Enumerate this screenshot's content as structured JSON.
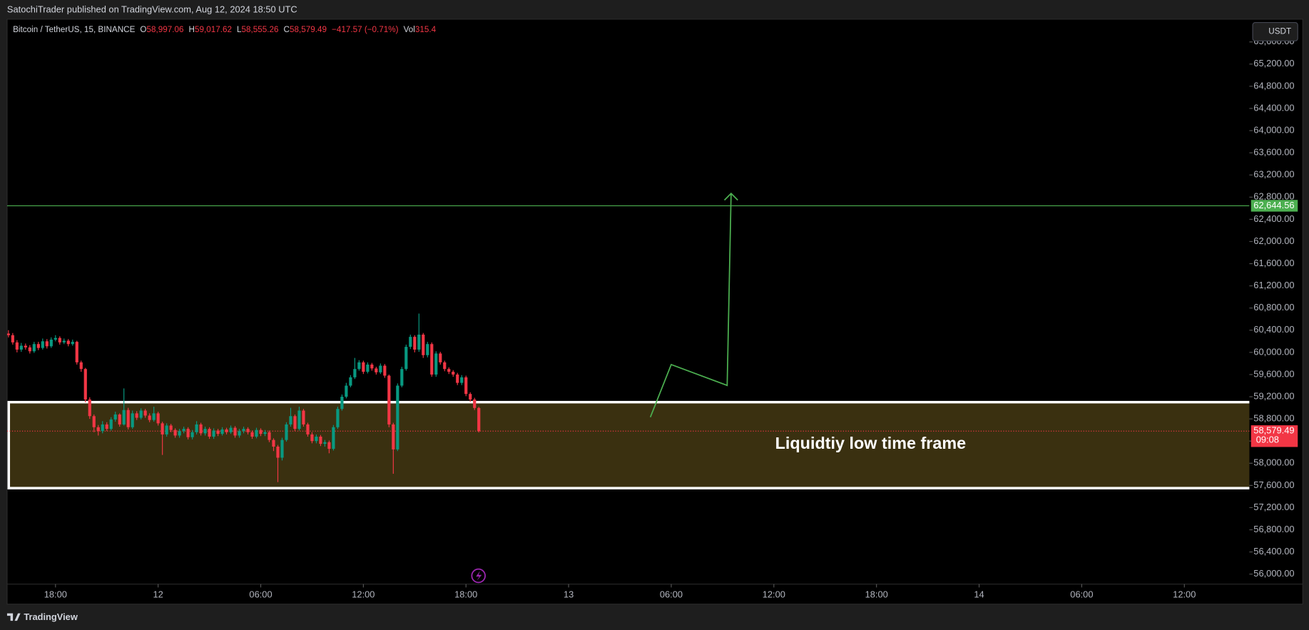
{
  "header": "SatochiTrader published on TradingView.com, Aug 12, 2024 18:50 UTC",
  "footer": "TradingView",
  "currency_button": "USDT",
  "chart_data": {
    "type": "candlestick",
    "legend": {
      "symbol": "Bitcoin / TetherUS, 15, BINANCE",
      "o_label": "O",
      "o": "58,997.06",
      "h_label": "H",
      "h": "59,017.62",
      "l_label": "L",
      "l": "58,555.26",
      "c_label": "C",
      "c": "58,579.49",
      "change": "−417.57 (−0.71%)",
      "vol_label": "Vol",
      "vol": "315.4"
    },
    "up_color": "#089981",
    "down_color": "#f23645",
    "x": [
      15.25,
      15.5,
      15.75,
      16,
      16.25,
      16.5,
      16.75,
      17,
      17.25,
      17.5,
      17.75,
      18,
      18.25,
      18.5,
      18.75,
      19,
      19.25,
      19.5,
      19.75,
      20,
      20.25,
      20.5,
      20.75,
      21,
      21.25,
      21.5,
      21.75,
      22,
      22.25,
      22.5,
      22.75,
      23,
      23.25,
      23.5,
      23.75,
      24,
      24.25,
      24.5,
      24.75,
      25,
      25.25,
      25.5,
      25.75,
      26,
      26.25,
      26.5,
      26.75,
      27,
      27.25,
      27.5,
      27.75,
      28,
      28.25,
      28.5,
      28.75,
      29,
      29.25,
      29.5,
      29.75,
      30,
      30.25,
      30.5,
      30.75,
      31,
      31.25,
      31.5,
      31.75,
      32,
      32.25,
      32.5,
      32.75,
      33,
      33.25,
      33.5,
      33.75,
      34,
      34.25,
      34.5,
      34.75,
      35,
      35.25,
      35.5,
      35.75,
      36,
      36.25,
      36.5,
      36.75,
      37,
      37.25,
      37.5,
      37.75,
      38,
      38.25,
      38.5,
      38.75,
      39,
      39.25,
      39.5,
      39.75,
      40,
      40.25,
      40.5,
      40.75,
      41,
      41.25,
      41.5,
      41.75,
      42,
      42.25,
      42.5,
      42.75
    ],
    "open": [
      60340,
      60310,
      60180,
      60050,
      60120,
      60090,
      60020,
      60150,
      60080,
      60200,
      60110,
      60230,
      60260,
      60180,
      60210,
      60150,
      60190,
      59820,
      59700,
      59150,
      58850,
      58650,
      58580,
      58700,
      58620,
      58790,
      58880,
      58700,
      58960,
      58650,
      58900,
      58820,
      58950,
      58860,
      58780,
      58900,
      58720,
      58520,
      58680,
      58600,
      58500,
      58580,
      58620,
      58470,
      58560,
      58700,
      58540,
      58620,
      58480,
      58590,
      58530,
      58610,
      58560,
      58640,
      58500,
      58580,
      58620,
      58560,
      58480,
      58600,
      58530,
      58560,
      58420,
      58300,
      58100,
      58420,
      58700,
      58850,
      58620,
      58950,
      58700,
      58520,
      58400,
      58480,
      58350,
      58380,
      58260,
      58650,
      58980,
      59200,
      59400,
      59550,
      59700,
      59820,
      59650,
      59780,
      59710,
      59640,
      59760,
      59580,
      58700,
      58250,
      59400,
      59700,
      60100,
      60280,
      60050,
      60320,
      59950,
      60150,
      59600,
      59980,
      59820,
      59700,
      59650,
      59600,
      59450,
      59550,
      59250,
      59150,
      58997.06
    ],
    "high": [
      60400,
      60350,
      60220,
      60170,
      60160,
      60130,
      60190,
      60190,
      60250,
      60240,
      60270,
      60310,
      60290,
      60250,
      60240,
      60230,
      60210,
      59850,
      59720,
      59190,
      58880,
      58690,
      58760,
      58740,
      58830,
      58930,
      58900,
      59350,
      59000,
      58950,
      58940,
      58990,
      58980,
      58900,
      59020,
      58930,
      58750,
      58720,
      58710,
      58630,
      58620,
      58660,
      58650,
      58600,
      58760,
      58730,
      58660,
      58650,
      58630,
      58620,
      58650,
      58640,
      58680,
      58670,
      58620,
      58660,
      58650,
      58590,
      58640,
      58630,
      58600,
      58590,
      58450,
      58330,
      58460,
      58740,
      59000,
      58880,
      59020,
      58980,
      58730,
      58560,
      58520,
      58510,
      58420,
      58410,
      58690,
      59020,
      59240,
      59450,
      59590,
      59900,
      59860,
      59850,
      59820,
      59810,
      59740,
      59800,
      59790,
      59600,
      58730,
      59440,
      59740,
      60140,
      60320,
      60310,
      60700,
      60350,
      60190,
      60180,
      60020,
      60010,
      59850,
      59730,
      59680,
      59630,
      59590,
      59580,
      59280,
      59180,
      59017.62
    ],
    "low": [
      60270,
      60140,
      60000,
      60010,
      60050,
      59980,
      59990,
      60040,
      60050,
      60070,
      60080,
      60200,
      60140,
      60150,
      60110,
      60120,
      59780,
      59650,
      59100,
      58800,
      58560,
      58500,
      58540,
      58580,
      58590,
      58750,
      58660,
      58680,
      58610,
      58620,
      58780,
      58790,
      58820,
      58740,
      58750,
      58680,
      58150,
      58480,
      58560,
      58460,
      58460,
      58540,
      58430,
      58430,
      58520,
      58500,
      58500,
      58440,
      58440,
      58490,
      58500,
      58520,
      58530,
      58460,
      58460,
      58540,
      58520,
      58440,
      58450,
      58490,
      58490,
      58380,
      58220,
      57660,
      58050,
      58390,
      58660,
      58580,
      58590,
      58660,
      58480,
      58360,
      58360,
      58310,
      58300,
      58180,
      58230,
      58620,
      58950,
      59170,
      59370,
      59520,
      59670,
      59610,
      59620,
      59670,
      59600,
      59610,
      59540,
      58650,
      57810,
      58220,
      59370,
      59670,
      60060,
      60000,
      60010,
      59900,
      59910,
      59560,
      59560,
      59780,
      59660,
      59610,
      59560,
      59410,
      59410,
      59210,
      59110,
      58960,
      58555.26
    ],
    "close": [
      60310,
      60180,
      60050,
      60120,
      60090,
      60020,
      60150,
      60080,
      60200,
      60110,
      60230,
      60260,
      60180,
      60210,
      60150,
      60190,
      59820,
      59700,
      59150,
      58850,
      58650,
      58580,
      58700,
      58620,
      58790,
      58880,
      58700,
      58960,
      58650,
      58900,
      58820,
      58950,
      58860,
      58780,
      58900,
      58720,
      58520,
      58680,
      58600,
      58500,
      58580,
      58620,
      58470,
      58560,
      58700,
      58540,
      58620,
      58480,
      58590,
      58530,
      58610,
      58560,
      58640,
      58500,
      58580,
      58620,
      58560,
      58480,
      58600,
      58530,
      58560,
      58420,
      58300,
      58100,
      58420,
      58700,
      58850,
      58620,
      58950,
      58700,
      58520,
      58400,
      58480,
      58350,
      58380,
      58260,
      58650,
      58980,
      59200,
      59400,
      59550,
      59700,
      59820,
      59650,
      59780,
      59710,
      59640,
      59760,
      59580,
      58700,
      58250,
      59400,
      59700,
      60100,
      60280,
      60050,
      60320,
      59950,
      60150,
      59600,
      59980,
      59820,
      59700,
      59650,
      59600,
      59450,
      59550,
      59250,
      59150,
      58997.06,
      58579.49
    ],
    "last_price_label": "58,579.49",
    "countdown": "09:08",
    "hline": {
      "value": 62644.56,
      "label": "62,644.56",
      "color": "#4caf50"
    },
    "zone": {
      "top": 59102,
      "bottom": 57551,
      "fill": "#3a3010",
      "border": "#ffffff",
      "label": "Liquidtiy low time frame"
    },
    "drawing": {
      "color": "#4caf50",
      "x": [
        52.78,
        54.0,
        57.27,
        57.5
      ],
      "y": [
        58831,
        59780,
        59404,
        62867
      ]
    },
    "xlim": [
      15.17,
      87.8
    ],
    "xticks": [
      {
        "value": 18,
        "label": "18:00"
      },
      {
        "value": 24,
        "label": "12"
      },
      {
        "value": 30,
        "label": "06:00"
      },
      {
        "value": 36,
        "label": "12:00"
      },
      {
        "value": 42,
        "label": "18:00"
      },
      {
        "value": 48,
        "label": "13"
      },
      {
        "value": 54,
        "label": "06:00"
      },
      {
        "value": 60,
        "label": "12:00"
      },
      {
        "value": 66,
        "label": "18:00"
      },
      {
        "value": 72,
        "label": "14"
      },
      {
        "value": 78,
        "label": "06:00"
      },
      {
        "value": 84,
        "label": "12:00"
      }
    ],
    "ylim": [
      55820,
      66010
    ],
    "yticks": [
      {
        "value": 56000,
        "label": "56,000.00"
      },
      {
        "value": 56400,
        "label": "56,400.00"
      },
      {
        "value": 56800,
        "label": "56,800.00"
      },
      {
        "value": 57200,
        "label": "57,200.00"
      },
      {
        "value": 57600,
        "label": "57,600.00"
      },
      {
        "value": 58000,
        "label": "58,000.00"
      },
      {
        "value": 58400,
        "label": "58,400.00"
      },
      {
        "value": 58800,
        "label": "58,800.00"
      },
      {
        "value": 59200,
        "label": "59,200.00"
      },
      {
        "value": 59600,
        "label": "59,600.00"
      },
      {
        "value": 60000,
        "label": "60,000.00"
      },
      {
        "value": 60400,
        "label": "60,400.00"
      },
      {
        "value": 60800,
        "label": "60,800.00"
      },
      {
        "value": 61200,
        "label": "61,200.00"
      },
      {
        "value": 61600,
        "label": "61,600.00"
      },
      {
        "value": 62000,
        "label": "62,000.00"
      },
      {
        "value": 62400,
        "label": "62,400.00"
      },
      {
        "value": 62800,
        "label": "62,800.00"
      },
      {
        "value": 63200,
        "label": "63,200.00"
      },
      {
        "value": 63600,
        "label": "63,600.00"
      },
      {
        "value": 64000,
        "label": "64,000.00"
      },
      {
        "value": 64400,
        "label": "64,400.00"
      },
      {
        "value": 64800,
        "label": "64,800.00"
      },
      {
        "value": 65200,
        "label": "65,200.00"
      },
      {
        "value": 65600,
        "label": "65,600.00"
      }
    ]
  }
}
